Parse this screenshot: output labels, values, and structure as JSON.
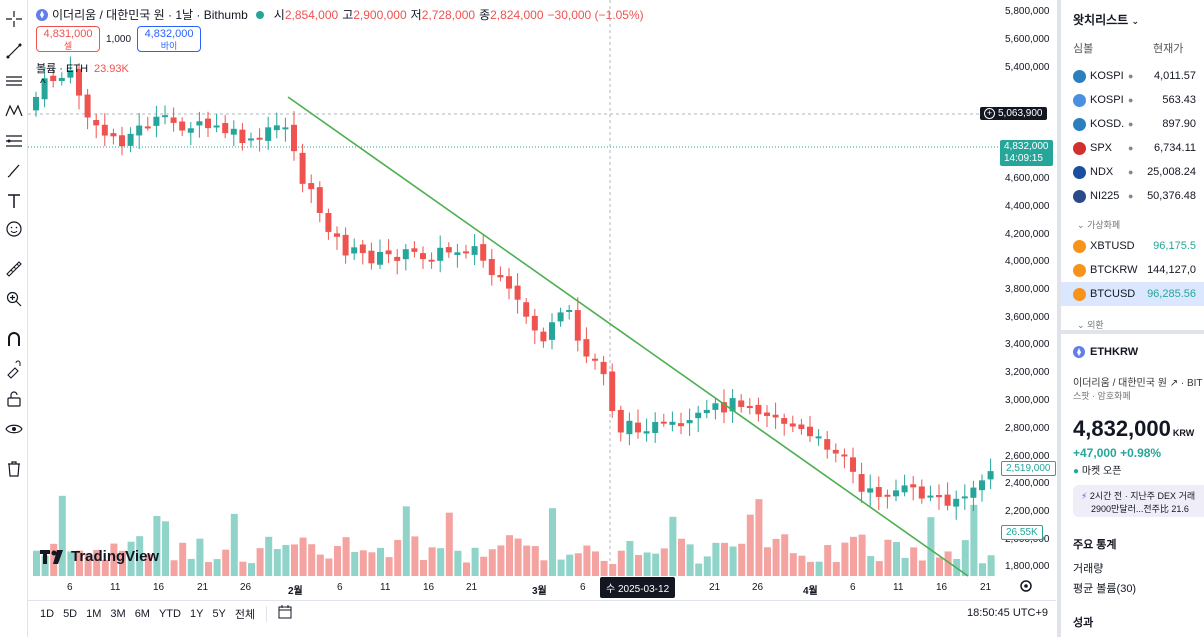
{
  "header": {
    "symbol_name": "이더리움 / 대한민국 원 · 1날 · Bithumb",
    "ohlc": [
      {
        "k": "시",
        "v": "2,854,000"
      },
      {
        "k": "고",
        "v": "2,900,000"
      },
      {
        "k": "저",
        "v": "2,728,000"
      },
      {
        "k": "종",
        "v": "2,824,000"
      }
    ],
    "change": "−30,000 (−1.05%)"
  },
  "trade": {
    "sell_price": "4,831,000",
    "sell_label": "셀",
    "spread": "1,000",
    "buy_price": "4,832,000",
    "buy_label": "바이"
  },
  "volume_legend": {
    "label": "볼륨 · ETH",
    "value": "23.93K"
  },
  "collapse_glyph": "^",
  "watermark": "TradingView",
  "price_axis": {
    "labels": [
      "5,800,000",
      "5,600,000",
      "5,400,000",
      "4,600,000",
      "4,400,000",
      "4,200,000",
      "4,000,000",
      "3,800,000",
      "3,600,000",
      "3,400,000",
      "3,200,000",
      "3,000,000",
      "2,800,000",
      "2,600,000",
      "2,400,000",
      "2,200,000",
      "2,000,000",
      "1,800,000"
    ],
    "crosshair_price": "5,063,900",
    "last_price": "4,832,000",
    "countdown": "14:09:15",
    "volume_tag": "2,519,000",
    "volume_tag2": "26.55K"
  },
  "time_axis": {
    "labels": [
      "6",
      "11",
      "16",
      "21",
      "26",
      "2월",
      "6",
      "11",
      "16",
      "21",
      "3월",
      "6",
      "21",
      "26",
      "4월",
      "6",
      "11",
      "16",
      "21"
    ],
    "crosshair_date": "수 2025-03-12"
  },
  "bottom_toolbar": {
    "timeframes": [
      "1D",
      "5D",
      "1M",
      "3M",
      "6M",
      "YTD",
      "1Y",
      "5Y",
      "전체"
    ],
    "clock": "18:50:45 UTC+9"
  },
  "watchlist": {
    "title": "왓치리스트",
    "col_symbol": "심볼",
    "col_price": "현재가",
    "rows": [
      {
        "sym": "KOSPI",
        "price": "4,011.57",
        "color": "#2a7fbf"
      },
      {
        "sym": "KOSPI",
        "price": "563.43",
        "color": "#4a90e2"
      },
      {
        "sym": "KOSD.",
        "price": "897.90",
        "color": "#2a7fbf"
      },
      {
        "sym": "SPX",
        "price": "6,734.11",
        "color": "#d32f2f"
      },
      {
        "sym": "NDX",
        "price": "25,008.24",
        "color": "#1a4fa0"
      },
      {
        "sym": "NI225",
        "price": "50,376.48",
        "color": "#2b4a8a"
      }
    ],
    "section_crypto": "가상화폐",
    "crypto_rows": [
      {
        "sym": "XBTUSD",
        "price": "96,175.5",
        "color": "#f7931a"
      },
      {
        "sym": "BTCKRW",
        "price": "144,127,0",
        "color": "#f7931a"
      },
      {
        "sym": "BTCUSD",
        "price": "96,285.56",
        "color": "#f7931a"
      }
    ],
    "section_fx": "외환"
  },
  "symbol_detail": {
    "ticker": "ETHKRW",
    "description": "이더리움 / 대한민국 원",
    "exchange_suffix": "· BIT",
    "category": "스팟 · 암호화폐",
    "price": "4,832,000",
    "currency": "KRW",
    "change": "+47,000",
    "change_pct": "+0.98%",
    "market_status": "마켓 오픈",
    "news_time": "2시간 전",
    "news_text": "· 지난주 DEX 거래",
    "news_text2": "2900만달러...전주比 21.6",
    "key_stats": "주요 통계",
    "volume_label": "거래량",
    "avg_volume_label": "평균 볼륨(30)",
    "performance": "성과"
  },
  "colors": {
    "up": "#26a69a",
    "down": "#ef5350",
    "up_vol": "#8fd3c9",
    "down_vol": "#f4a3a0",
    "trend": "#4caf50"
  }
}
